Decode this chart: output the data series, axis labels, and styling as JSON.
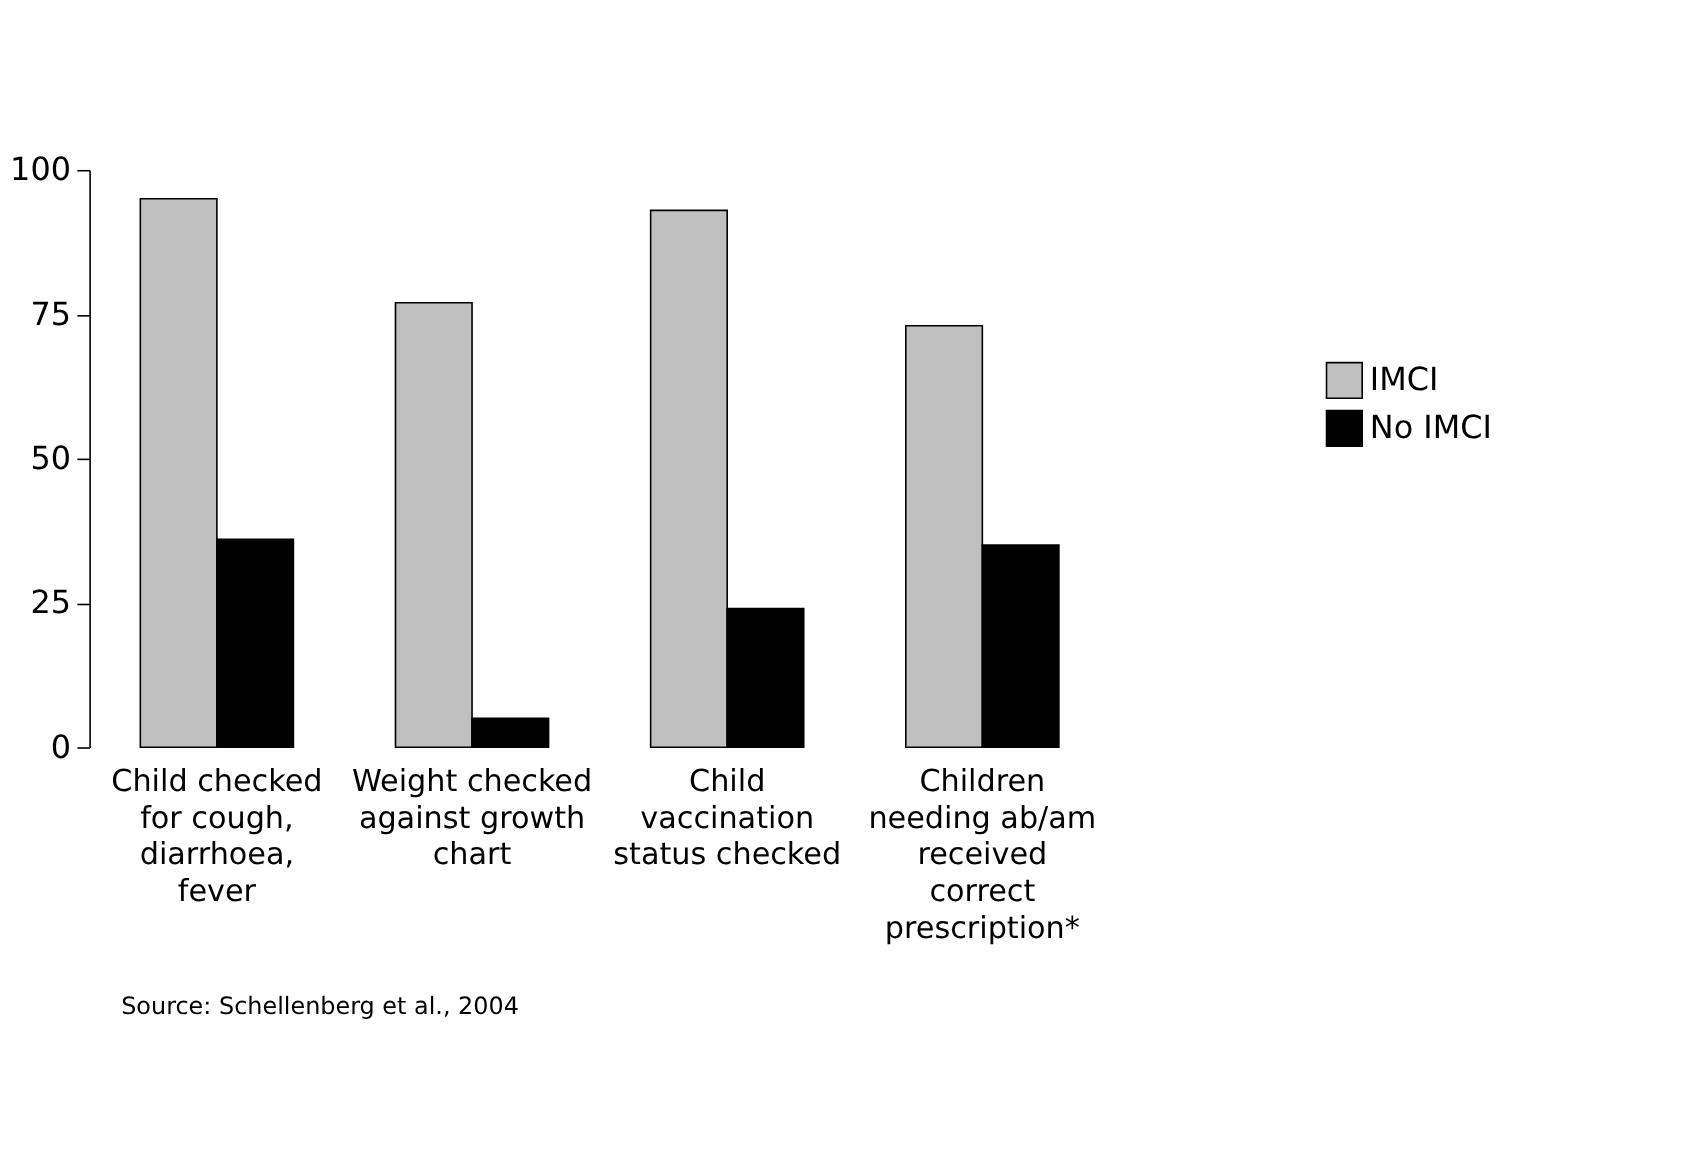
{
  "chart_data": {
    "type": "bar",
    "categories": [
      "Child checked for cough, diarrhoea, fever",
      "Weight checked against growth chart",
      "Child vaccination status checked",
      "Children needing ab/am received correct prescription*"
    ],
    "series": [
      {
        "name": "IMCI",
        "color": "#c0c0c0",
        "values": [
          95,
          77,
          93,
          73
        ]
      },
      {
        "name": "No IMCI",
        "color": "#000000",
        "values": [
          36,
          5,
          24,
          35
        ]
      }
    ],
    "ylim": [
      0,
      100
    ],
    "yticks": [
      0,
      25,
      50,
      75,
      100
    ],
    "grid": false,
    "legend": "right",
    "annotations": [
      "Source: Schellenberg et al., 2004"
    ]
  }
}
